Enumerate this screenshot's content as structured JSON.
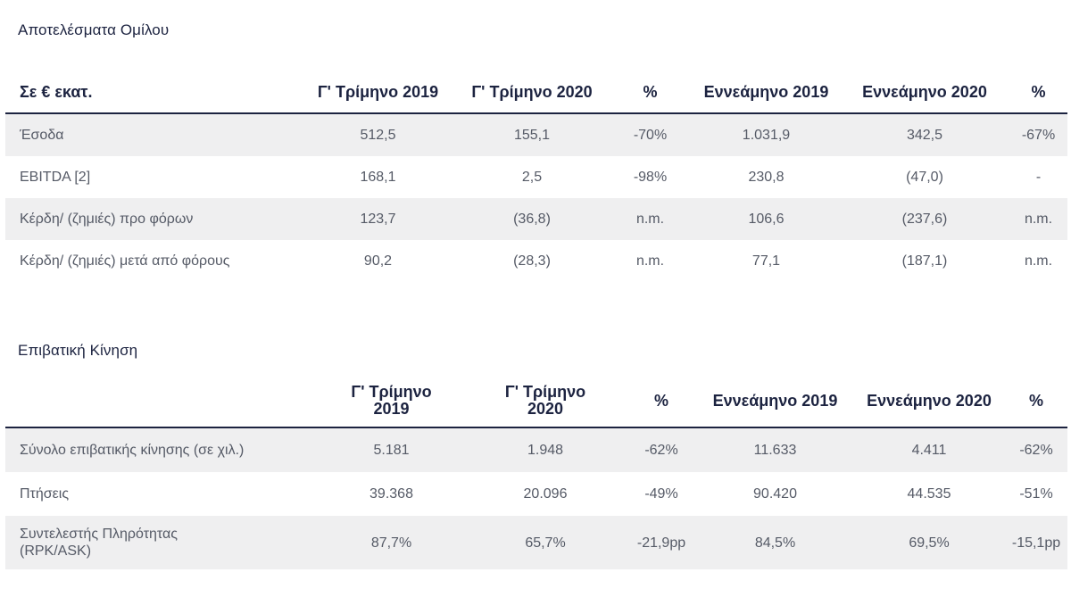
{
  "results": {
    "title": "Αποτελέσματα Ομίλου",
    "headers": [
      "Σε € εκατ.",
      "Γ' Τρίμηνο 2019",
      "Γ' Τρίμηνο 2020",
      "%",
      "Εννεάμηνο 2019",
      "Εννεάμηνο  2020",
      "%"
    ],
    "rows": [
      [
        "Έσοδα",
        "512,5",
        "155,1",
        "-70%",
        "1.031,9",
        "342,5",
        "-67%"
      ],
      [
        "EBITDA [2]",
        "168,1",
        "2,5",
        "-98%",
        "230,8",
        "(47,0)",
        "-"
      ],
      [
        "Κέρδη/ (ζημιές) προ φόρων",
        "123,7",
        "(36,8)",
        "n.m.",
        "106,6",
        "(237,6)",
        "n.m."
      ],
      [
        "Κέρδη/ (ζημιές) μετά από φόρους",
        "90,2",
        "(28,3)",
        "n.m.",
        "77,1",
        "(187,1)",
        "n.m."
      ]
    ]
  },
  "traffic": {
    "title": "Επιβατική Κίνηση",
    "headers": [
      "",
      "Γ' Τρίμηνο\n2019",
      "Γ' Τρίμηνο\n2020",
      "%",
      "Εννεάμηνο 2019",
      "Εννεάμηνο 2020",
      "%"
    ],
    "rows": [
      [
        "Σύνολο επιβατικής κίνησης (σε χιλ.)",
        "5.181",
        "1.948",
        "-62%",
        "11.633",
        "4.411",
        "-62%"
      ],
      [
        "Πτήσεις",
        "39.368",
        "20.096",
        "-49%",
        "90.420",
        "44.535",
        "-51%"
      ],
      [
        "Συντελεστής Πληρότητας\n(RPK/ASK)",
        "87,7%",
        "65,7%",
        "-21,9pp",
        "84,5%",
        "69,5%",
        "-15,1pp"
      ]
    ]
  },
  "colors": {
    "text_dark": "#1c2340",
    "text_body": "#555a66",
    "row_shade": "#efeff0",
    "header_rule": "#1c2340"
  }
}
